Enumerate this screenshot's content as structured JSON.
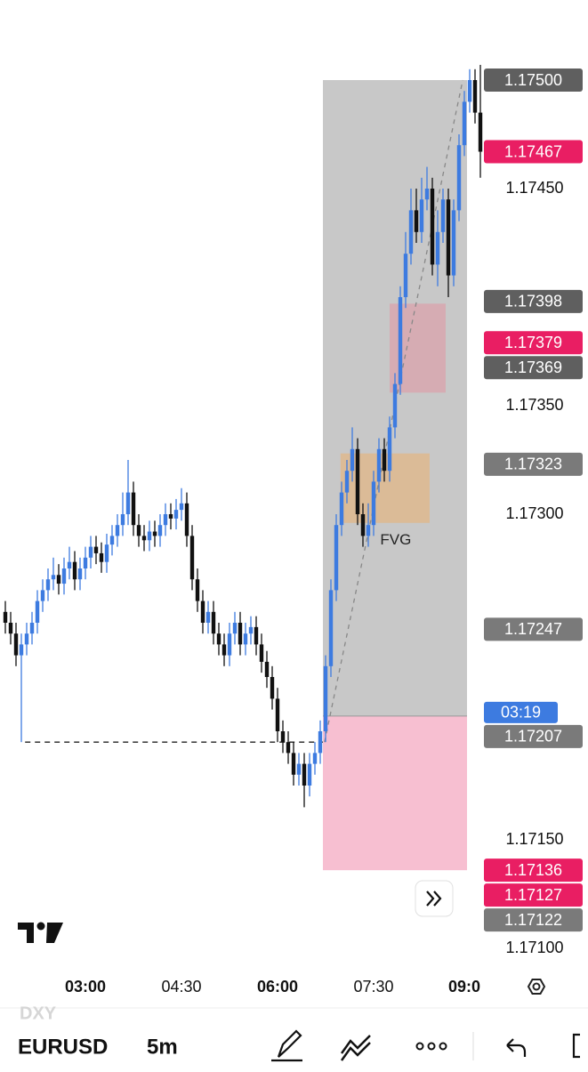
{
  "chart_data": {
    "type": "candlestick",
    "comparison": "DXY",
    "symbol": "EURUSD",
    "interval": "5m",
    "up_color": "#3d7be0",
    "down_color": "#111111",
    "xlim": [
      -1,
      89
    ],
    "ylim": [
      1.171,
      1.175
    ],
    "yticks": [
      {
        "value": 1.1745,
        "label": "1.17450"
      },
      {
        "value": 1.1735,
        "label": "1.17350"
      },
      {
        "value": 1.173,
        "label": "1.17300"
      },
      {
        "value": 1.1715,
        "label": "1.17150"
      },
      {
        "value": 1.171,
        "label": "1.17100"
      }
    ],
    "xticks": [
      {
        "value": 15,
        "label": "03:00",
        "bold": true
      },
      {
        "value": 33,
        "label": "04:30",
        "bold": false
      },
      {
        "value": 51,
        "label": "06:00",
        "bold": true
      },
      {
        "value": 69,
        "label": "07:30",
        "bold": false
      },
      {
        "value": 86,
        "label": "09:0",
        "bold": true
      }
    ],
    "open": [
      1.17255,
      1.1725,
      1.17245,
      1.17235,
      1.1724,
      1.17245,
      1.1725,
      1.1726,
      1.17265,
      1.1727,
      1.17272,
      1.17268,
      1.17275,
      1.17278,
      1.1727,
      1.17275,
      1.1728,
      1.17285,
      1.17282,
      1.17278,
      1.17286,
      1.1729,
      1.17295,
      1.173,
      1.1731,
      1.17295,
      1.1729,
      1.17288,
      1.17292,
      1.1729,
      1.17295,
      1.173,
      1.17298,
      1.17302,
      1.17305,
      1.1729,
      1.1727,
      1.1726,
      1.1725,
      1.17255,
      1.17245,
      1.1724,
      1.17235,
      1.17245,
      1.1725,
      1.1724,
      1.17245,
      1.17248,
      1.1724,
      1.17232,
      1.17225,
      1.17215,
      1.172,
      1.17195,
      1.1719,
      1.1718,
      1.17185,
      1.17175,
      1.17185,
      1.1719,
      1.172,
      1.1723,
      1.17265,
      1.17295,
      1.1731,
      1.1732,
      1.1733,
      1.173,
      1.1729,
      1.17295,
      1.17315,
      1.1733,
      1.1732,
      1.1734,
      1.1736,
      1.174,
      1.1742,
      1.1744,
      1.1743,
      1.17445,
      1.1745,
      1.17415,
      1.1743,
      1.17445,
      1.1741,
      1.1744,
      1.1747,
      1.1749,
      1.175,
      1.17485
    ],
    "high": [
      1.1726,
      1.17255,
      1.1725,
      1.17245,
      1.1725,
      1.17255,
      1.17265,
      1.1727,
      1.17275,
      1.1728,
      1.17277,
      1.1728,
      1.17285,
      1.17283,
      1.1728,
      1.17285,
      1.1729,
      1.1729,
      1.17287,
      1.17291,
      1.17295,
      1.173,
      1.1731,
      1.17325,
      1.17315,
      1.173,
      1.17295,
      1.17297,
      1.17297,
      1.173,
      1.17305,
      1.17305,
      1.17307,
      1.17312,
      1.1731,
      1.17295,
      1.17275,
      1.17265,
      1.1726,
      1.1726,
      1.1725,
      1.17245,
      1.1725,
      1.17255,
      1.17255,
      1.1725,
      1.17253,
      1.17253,
      1.17245,
      1.17237,
      1.1723,
      1.1722,
      1.17205,
      1.172,
      1.17195,
      1.1719,
      1.1719,
      1.1719,
      1.17195,
      1.17205,
      1.17235,
      1.1727,
      1.173,
      1.17315,
      1.17325,
      1.1734,
      1.17335,
      1.17305,
      1.17305,
      1.1732,
      1.17335,
      1.17335,
      1.17345,
      1.17365,
      1.17405,
      1.1743,
      1.1745,
      1.1745,
      1.17455,
      1.1746,
      1.17455,
      1.1744,
      1.1745,
      1.1745,
      1.17445,
      1.17475,
      1.17495,
      1.17505,
      1.17505,
      1.17507
    ],
    "low": [
      1.17245,
      1.1724,
      1.1723,
      1.17195,
      1.17235,
      1.1724,
      1.17245,
      1.17255,
      1.1726,
      1.17265,
      1.17263,
      1.17263,
      1.1727,
      1.17265,
      1.17265,
      1.1727,
      1.17275,
      1.17277,
      1.17273,
      1.17273,
      1.17281,
      1.17285,
      1.1729,
      1.17295,
      1.1729,
      1.17285,
      1.17283,
      1.17283,
      1.17285,
      1.17285,
      1.1729,
      1.17293,
      1.17293,
      1.17297,
      1.17285,
      1.17265,
      1.17255,
      1.17245,
      1.17245,
      1.1724,
      1.17235,
      1.1723,
      1.1723,
      1.1724,
      1.17235,
      1.17235,
      1.1724,
      1.17235,
      1.17227,
      1.1722,
      1.1721,
      1.17195,
      1.1719,
      1.17185,
      1.17175,
      1.17175,
      1.17165,
      1.1717,
      1.1718,
      1.17185,
      1.17195,
      1.17225,
      1.1726,
      1.1729,
      1.17305,
      1.17315,
      1.17295,
      1.17285,
      1.17285,
      1.1729,
      1.1731,
      1.17315,
      1.17315,
      1.17335,
      1.17355,
      1.17395,
      1.17415,
      1.17425,
      1.17425,
      1.1744,
      1.1741,
      1.17405,
      1.17425,
      1.174,
      1.17405,
      1.17435,
      1.17465,
      1.17485,
      1.1748,
      1.17455
    ],
    "close": [
      1.1725,
      1.17245,
      1.17235,
      1.1724,
      1.17245,
      1.1725,
      1.1726,
      1.17265,
      1.1727,
      1.17272,
      1.17268,
      1.17275,
      1.17278,
      1.1727,
      1.17275,
      1.1728,
      1.17285,
      1.17282,
      1.17278,
      1.17286,
      1.1729,
      1.17295,
      1.173,
      1.1731,
      1.17295,
      1.1729,
      1.17288,
      1.17292,
      1.1729,
      1.17295,
      1.173,
      1.17298,
      1.17302,
      1.17305,
      1.1729,
      1.1727,
      1.1726,
      1.1725,
      1.17255,
      1.17245,
      1.1724,
      1.17235,
      1.17245,
      1.1725,
      1.1724,
      1.17245,
      1.17248,
      1.1724,
      1.17232,
      1.17225,
      1.17215,
      1.172,
      1.17195,
      1.1719,
      1.1718,
      1.17185,
      1.17175,
      1.17185,
      1.1719,
      1.172,
      1.1723,
      1.17265,
      1.17295,
      1.1731,
      1.1732,
      1.1733,
      1.173,
      1.1729,
      1.17295,
      1.17315,
      1.1733,
      1.1732,
      1.1734,
      1.1736,
      1.174,
      1.1742,
      1.1744,
      1.1743,
      1.17445,
      1.1745,
      1.17415,
      1.1743,
      1.17445,
      1.1741,
      1.1744,
      1.1747,
      1.1749,
      1.175,
      1.17485,
      1.17467
    ],
    "zones": [
      {
        "from": 59.5,
        "to": 86.5,
        "low": 1.17207,
        "high": 1.175,
        "color": "#c8c8c8"
      },
      {
        "from": 59.5,
        "to": 86.5,
        "low": 1.17136,
        "high": 1.17207,
        "color": "#f7bfd1"
      },
      {
        "from": 62.8,
        "to": 79.5,
        "low": 1.17296,
        "high": 1.17328,
        "color": "rgba(242,170,90,0.45)",
        "label": "FVG"
      },
      {
        "from": 72,
        "to": 82.5,
        "low": 1.17356,
        "high": 1.17397,
        "color": "rgba(240,120,140,0.35)"
      }
    ],
    "levels": [
      {
        "value": 1.17195,
        "from": 3.7,
        "to": 59.5
      }
    ],
    "trendline": {
      "x": [
        59.8,
        85.7
      ],
      "y": [
        1.17195,
        1.175
      ]
    },
    "price_markers": [
      {
        "value": 1.175,
        "label": "1.17500",
        "color": "#5f5f5f"
      },
      {
        "value": 1.17467,
        "label": "1.17467",
        "color": "#e91e63"
      },
      {
        "value": 1.17398,
        "label": "1.17398",
        "color": "#5f5f5f"
      },
      {
        "value": 1.17379,
        "label": "1.17379",
        "color": "#e91e63"
      },
      {
        "value": 1.17369,
        "label": "1.17369",
        "color": "#5f5f5f"
      },
      {
        "value": 1.17323,
        "label": "1.17323",
        "color": "#7a7a7a"
      },
      {
        "value": 1.17247,
        "label": "1.17247",
        "color": "#7a7a7a"
      },
      {
        "value": 1.17207,
        "label": "1.17207",
        "color": "#7a7a7a"
      },
      {
        "value": 1.17136,
        "label": "1.17136",
        "color": "#e91e63"
      },
      {
        "value": 1.17127,
        "label": "1.17127",
        "color": "#e91e63"
      },
      {
        "value": 1.17122,
        "label": "1.17122",
        "color": "#7a7a7a"
      }
    ],
    "countdown": "03:19",
    "countdown_color": "#3d7be0"
  }
}
